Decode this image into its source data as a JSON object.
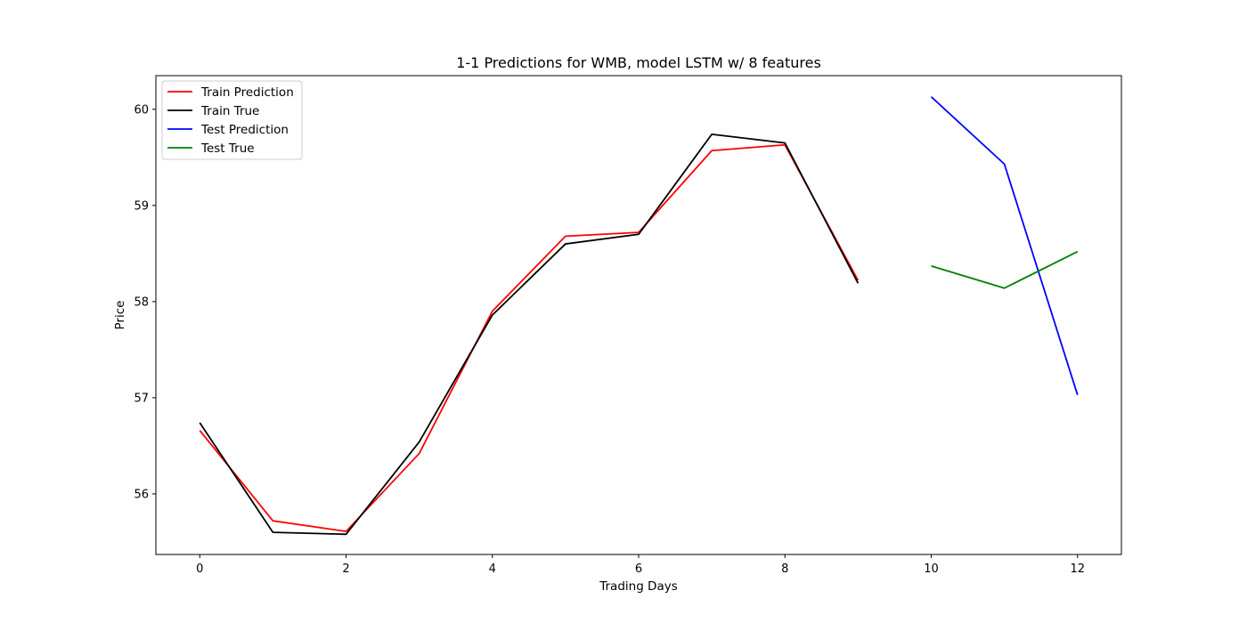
{
  "chart_data": {
    "type": "line",
    "title": "1-1 Predictions for WMB, model LSTM w/ 8 features",
    "xlabel": "Trading Days",
    "ylabel": "Price",
    "xlim": [
      -0.6,
      12.6
    ],
    "ylim": [
      55.37,
      60.35
    ],
    "xticks": [
      0,
      2,
      4,
      6,
      8,
      10,
      12
    ],
    "yticks": [
      56,
      57,
      58,
      59,
      60
    ],
    "grid": false,
    "legend_position": "top-left",
    "series": [
      {
        "name": "Train Prediction",
        "color": "#ff0000",
        "x": [
          0,
          1,
          2,
          3,
          4,
          5,
          6,
          7,
          8,
          9
        ],
        "y": [
          56.66,
          55.72,
          55.61,
          56.42,
          57.9,
          58.68,
          58.72,
          59.57,
          59.63,
          58.22
        ]
      },
      {
        "name": "Train True",
        "color": "#000000",
        "x": [
          0,
          1,
          2,
          3,
          4,
          5,
          6,
          7,
          8,
          9
        ],
        "y": [
          56.74,
          55.6,
          55.58,
          56.54,
          57.86,
          58.6,
          58.7,
          59.74,
          59.65,
          58.19
        ]
      },
      {
        "name": "Test Prediction",
        "color": "#0000ff",
        "x": [
          10,
          11,
          12
        ],
        "y": [
          60.13,
          59.43,
          57.03
        ]
      },
      {
        "name": "Test True",
        "color": "#008000",
        "x": [
          10,
          11,
          12
        ],
        "y": [
          58.37,
          58.14,
          58.52
        ]
      }
    ]
  }
}
